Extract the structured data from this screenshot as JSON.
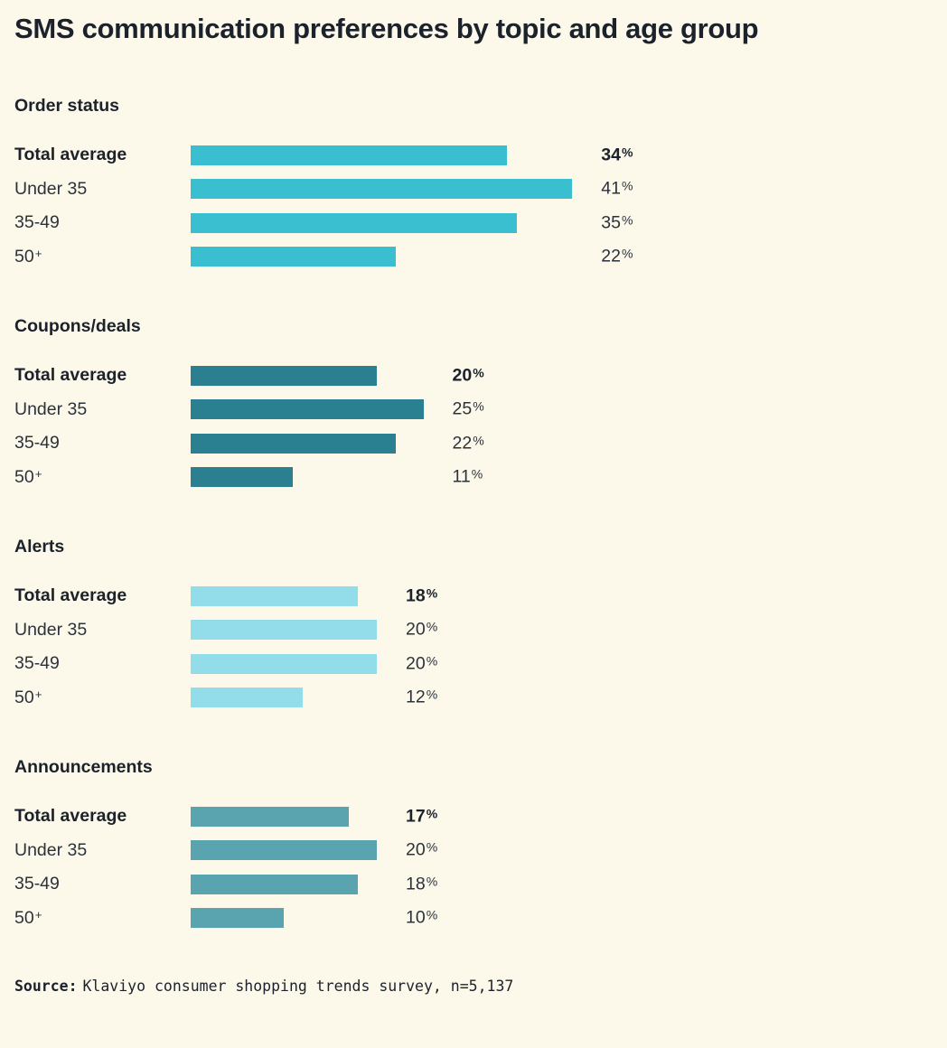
{
  "page": {
    "title": "SMS communication preferences by topic and age group",
    "background_color": "#FCF9EB",
    "text_color": "#1C222B"
  },
  "chart_data": {
    "type": "bar",
    "orientation": "horizontal",
    "title": "SMS communication preferences by topic and age group",
    "categories": [
      "Total average",
      "Under 35",
      "35-49",
      "50+"
    ],
    "unit": "%",
    "xlim": [
      0,
      45
    ],
    "grid": false,
    "legend": "none",
    "value_labels": "right-of-longest-bar-per-section",
    "sections": [
      {
        "title": "Order status",
        "color": "#3ABFD1",
        "values": [
          34,
          41,
          35,
          22
        ]
      },
      {
        "title": "Coupons/deals",
        "color": "#2A7F90",
        "values": [
          20,
          25,
          22,
          11
        ]
      },
      {
        "title": "Alerts",
        "color": "#93DCEA",
        "values": [
          18,
          20,
          20,
          12
        ]
      },
      {
        "title": "Announcements",
        "color": "#5AA4AF",
        "values": [
          17,
          20,
          18,
          10
        ]
      }
    ]
  },
  "source": {
    "label": "Source:",
    "text": "Klaviyo consumer shopping trends survey, n=5,137"
  }
}
